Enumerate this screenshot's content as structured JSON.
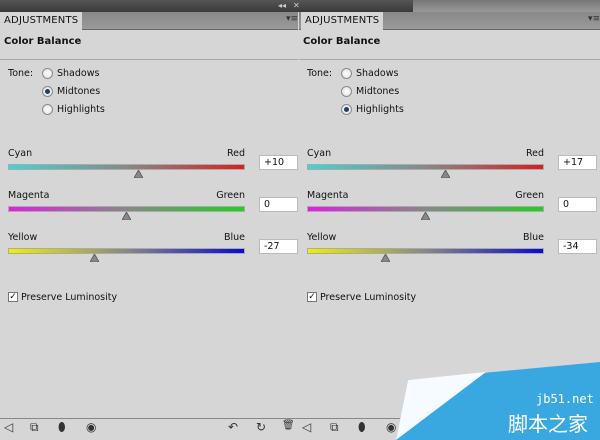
{
  "panels": [
    {
      "tab": "ADJUSTMENTS",
      "title": "Color Balance",
      "tone_label": "Tone:",
      "tones": [
        "Shadows",
        "Midtones",
        "Highlights"
      ],
      "selected_tone": "Midtones",
      "sliders": [
        {
          "left": "Cyan",
          "right": "Red",
          "value": "+10",
          "num": 10,
          "from": "#3fd6d6",
          "to": "#e01c1c"
        },
        {
          "left": "Magenta",
          "right": "Green",
          "value": "0",
          "num": 0,
          "from": "#e020e0",
          "to": "#20d020"
        },
        {
          "left": "Yellow",
          "right": "Blue",
          "value": "-27",
          "num": -27,
          "from": "#f0f000",
          "to": "#0a0ad0"
        }
      ],
      "preserve_label": "Preserve Luminosity",
      "preserve_checked": true
    },
    {
      "tab": "ADJUSTMENTS",
      "title": "Color Balance",
      "tone_label": "Tone:",
      "tones": [
        "Shadows",
        "Midtones",
        "Highlights"
      ],
      "selected_tone": "Highlights",
      "sliders": [
        {
          "left": "Cyan",
          "right": "Red",
          "value": "+17",
          "num": 17,
          "from": "#3fd6d6",
          "to": "#e01c1c"
        },
        {
          "left": "Magenta",
          "right": "Green",
          "value": "0",
          "num": 0,
          "from": "#e020e0",
          "to": "#20d020"
        },
        {
          "left": "Yellow",
          "right": "Blue",
          "value": "-34",
          "num": -34,
          "from": "#f0f000",
          "to": "#0a0ad0"
        }
      ],
      "preserve_label": "Preserve Luminosity",
      "preserve_checked": true
    }
  ],
  "topbar": {
    "collapse": "◂◂",
    "close": "✕"
  },
  "icons": {
    "back": "◁",
    "clip": "⧉",
    "mask": "⬮",
    "eye": "◉",
    "prev_state": "↶",
    "reset": "↻",
    "trash": "🗑"
  },
  "watermark": {
    "site": "jb51.net",
    "name": "脚本之家",
    "color": "#3aa8e0"
  }
}
